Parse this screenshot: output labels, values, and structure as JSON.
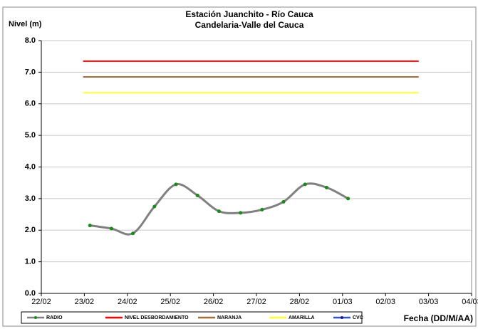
{
  "chart_data": {
    "type": "line",
    "title": "Estación Juanchito - Río Cauca",
    "subtitle": "Candelaria-Valle del Cauca",
    "y_label": "Nivel (m)",
    "x_label": "Fecha (DD/M/AA)",
    "xlim": [
      0,
      10
    ],
    "xticks": [
      {
        "value": 0,
        "label": "22/02"
      },
      {
        "value": 1,
        "label": "23/02"
      },
      {
        "value": 2,
        "label": "24/02"
      },
      {
        "value": 3,
        "label": "25/02"
      },
      {
        "value": 4,
        "label": "26/02"
      },
      {
        "value": 5,
        "label": "27/02"
      },
      {
        "value": 6,
        "label": "28/02"
      },
      {
        "value": 7,
        "label": "01/03"
      },
      {
        "value": 8,
        "label": "02/03"
      },
      {
        "value": 9,
        "label": "03/03"
      },
      {
        "value": 10,
        "label": "04/03"
      }
    ],
    "ylim": [
      0,
      8
    ],
    "yticks": [
      {
        "value": 0,
        "label": "0.0"
      },
      {
        "value": 1,
        "label": "1.0"
      },
      {
        "value": 2,
        "label": "2.0"
      },
      {
        "value": 3,
        "label": "3.0"
      },
      {
        "value": 4,
        "label": "4.0"
      },
      {
        "value": 5,
        "label": "5.0"
      },
      {
        "value": 6,
        "label": "6.0"
      },
      {
        "value": 7,
        "label": "7.0"
      },
      {
        "value": 8,
        "label": "8.0"
      }
    ],
    "grid": true,
    "legend": "bottom",
    "series": [
      {
        "name": "RADIO",
        "color": "#808080",
        "marker_color": "#1a8a1a",
        "smooth": true,
        "x": [
          1.13,
          1.63,
          2.13,
          2.63,
          3.13,
          3.63,
          4.13,
          4.63,
          5.13,
          5.63,
          6.13,
          6.63,
          7.13
        ],
        "values": [
          2.15,
          2.05,
          1.9,
          2.75,
          3.45,
          3.1,
          2.6,
          2.55,
          2.65,
          2.9,
          3.45,
          3.35,
          3.0
        ]
      },
      {
        "name": "NIVEL DESBORDAMIENTO",
        "color": "#ff0000",
        "x": [
          0.97,
          8.77
        ],
        "values": [
          7.35,
          7.35
        ]
      },
      {
        "name": "NARANJA",
        "color": "#a0703c",
        "x": [
          0.97,
          8.77
        ],
        "values": [
          6.85,
          6.85
        ]
      },
      {
        "name": "AMARILLA",
        "color": "#ffff33",
        "x": [
          0.97,
          8.77
        ],
        "values": [
          6.35,
          6.35
        ]
      },
      {
        "name": "CVC",
        "color": "#3355cc",
        "marker_color": "#1a1a99",
        "x": [],
        "values": []
      }
    ]
  }
}
